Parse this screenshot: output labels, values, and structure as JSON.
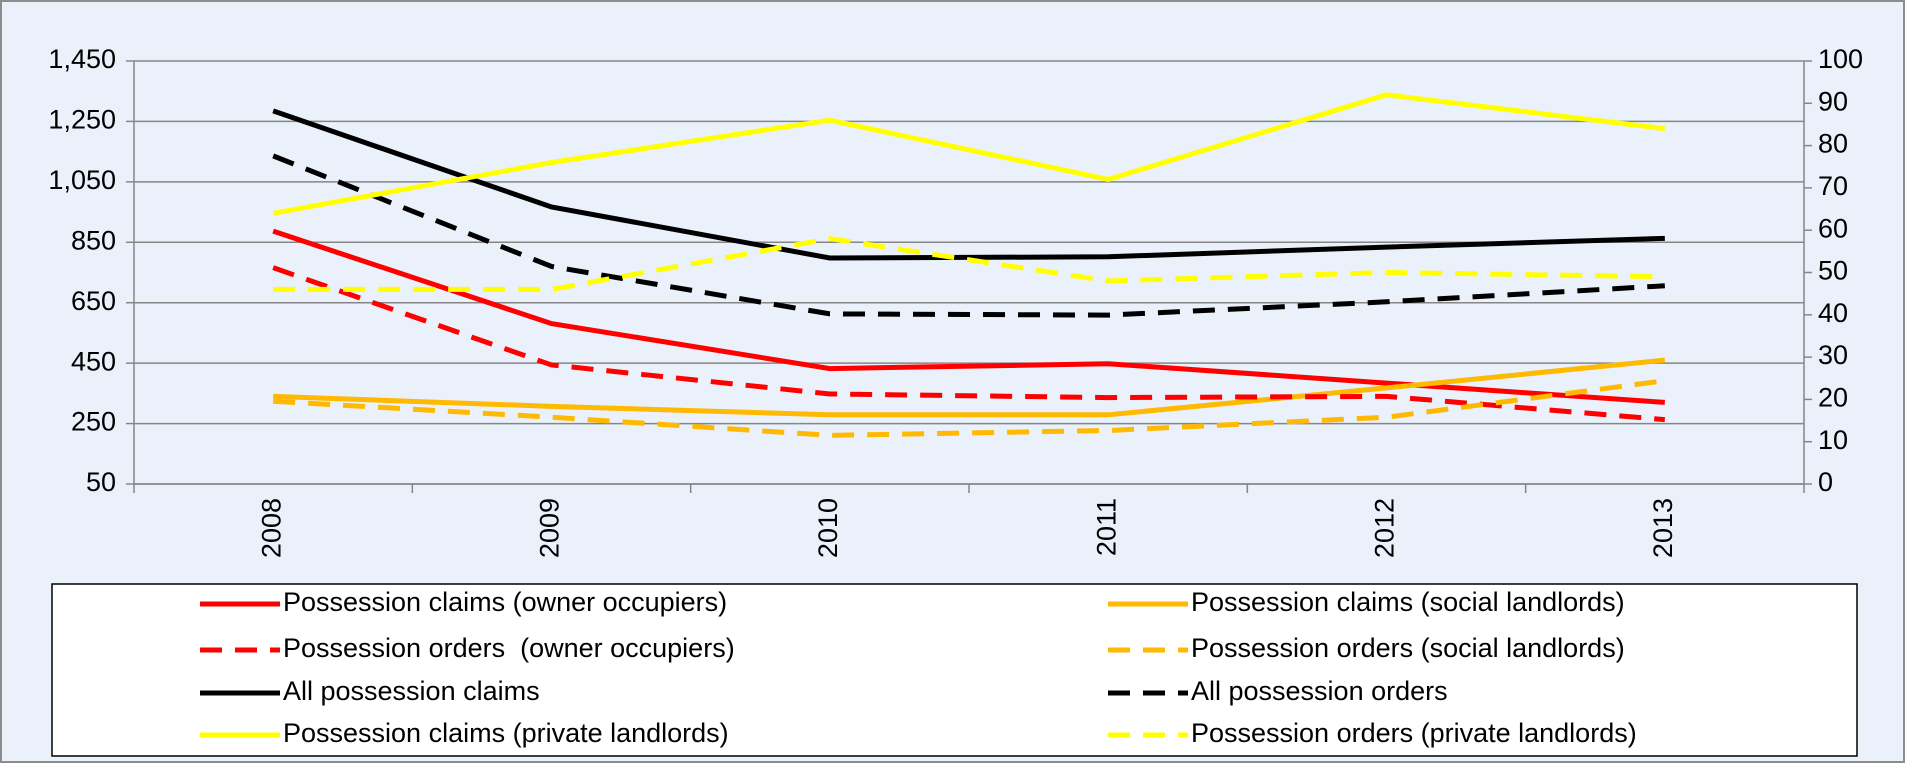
{
  "chart_data": {
    "type": "line",
    "categories": [
      "2008",
      "2009",
      "2010",
      "2011",
      "2012",
      "2013"
    ],
    "ylim": [
      50,
      1450
    ],
    "yticks": [
      {
        "value": 50,
        "label": "50"
      },
      {
        "value": 250,
        "label": "250"
      },
      {
        "value": 450,
        "label": "450"
      },
      {
        "value": 650,
        "label": "650"
      },
      {
        "value": 850,
        "label": "850"
      },
      {
        "value": 1050,
        "label": "1,050"
      },
      {
        "value": 1250,
        "label": "1,250"
      },
      {
        "value": 1450,
        "label": "1,450"
      }
    ],
    "y2lim": [
      0,
      100
    ],
    "y2ticks": [
      0,
      10,
      20,
      30,
      40,
      50,
      60,
      70,
      80,
      90,
      100
    ],
    "grid": true,
    "series": [
      {
        "name": "Possession claims (owner occupiers)",
        "color": "#ff0000",
        "dashed": false,
        "values": [
          887,
          581,
          432,
          448,
          384,
          320
        ]
      },
      {
        "name": "Possession claims (social landlords)",
        "color": "#ffb900",
        "dashed": false,
        "values": [
          340,
          307,
          279,
          279,
          368,
          460
        ]
      },
      {
        "name": "Possession orders  (owner occupiers)",
        "color": "#ff0000",
        "dashed": true,
        "values": [
          766,
          444,
          348,
          336,
          340,
          263
        ]
      },
      {
        "name": "Possession orders (social landlords)",
        "color": "#ffb900",
        "dashed": true,
        "values": [
          324,
          271,
          211,
          227,
          271,
          392
        ]
      },
      {
        "name": "All possession claims",
        "color": "#000000",
        "dashed": false,
        "values": [
          1285,
          967,
          798,
          802,
          834,
          863
        ]
      },
      {
        "name": "All possession orders",
        "color": "#000000",
        "dashed": true,
        "values": [
          1136,
          770,
          613,
          609,
          653,
          706
        ]
      },
      {
        "name": "Possession claims (private landlords)",
        "color": "#ffff00",
        "dashed": false,
        "axis": "y2",
        "values": [
          64,
          76,
          86,
          72,
          92,
          84
        ]
      },
      {
        "name": "Possession orders (private landlords)",
        "color": "#ffff00",
        "dashed": true,
        "axis": "y2",
        "values": [
          46,
          46,
          58,
          48,
          50,
          49
        ]
      }
    ]
  }
}
